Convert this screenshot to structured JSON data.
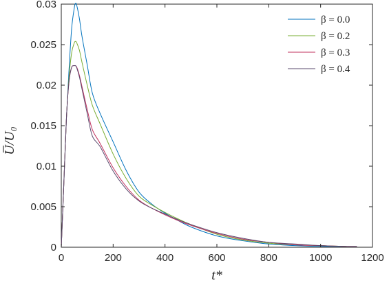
{
  "chart_data": {
    "type": "line",
    "title": "",
    "xlabel": "t*",
    "ylabel": "U̅/U₀",
    "xlim": [
      0,
      1200
    ],
    "ylim": [
      0,
      0.03
    ],
    "xticks": [
      0,
      200,
      400,
      600,
      800,
      1000,
      1200
    ],
    "xtick_labels": [
      "0",
      "200",
      "400",
      "600",
      "800",
      "1000",
      "1200"
    ],
    "yticks": [
      0,
      0.005,
      0.01,
      0.015,
      0.02,
      0.025,
      0.03
    ],
    "ytick_labels": [
      "0",
      "0.005",
      "0.01",
      "0.015",
      "0.02",
      "0.025",
      "0.03"
    ],
    "grid": false,
    "legend_position": "top-right",
    "series": [
      {
        "name": "β = 0.0",
        "color": "#0072BD",
        "x": [
          0,
          10,
          20,
          30,
          40,
          50,
          55,
          60,
          70,
          80,
          100,
          120,
          150,
          200,
          250,
          300,
          350,
          400,
          450,
          500,
          600,
          700,
          800,
          900,
          1000,
          1100
        ],
        "y": [
          0,
          0.008,
          0.016,
          0.022,
          0.027,
          0.0295,
          0.0301,
          0.0298,
          0.0282,
          0.026,
          0.0225,
          0.019,
          0.0165,
          0.013,
          0.0095,
          0.0068,
          0.0053,
          0.0042,
          0.0033,
          0.0025,
          0.0014,
          0.0008,
          0.0004,
          0.0002,
          0.0001,
          0.0001
        ]
      },
      {
        "name": "β = 0.2",
        "color": "#77AC30",
        "x": [
          0,
          10,
          20,
          30,
          40,
          50,
          55,
          60,
          70,
          80,
          100,
          120,
          150,
          200,
          250,
          300,
          350,
          400,
          450,
          500,
          600,
          700,
          800,
          900,
          1000,
          1100
        ],
        "y": [
          0,
          0.008,
          0.016,
          0.021,
          0.024,
          0.0252,
          0.0254,
          0.0252,
          0.0243,
          0.0228,
          0.02,
          0.0175,
          0.0152,
          0.0115,
          0.0085,
          0.0063,
          0.0052,
          0.0043,
          0.0035,
          0.0028,
          0.0016,
          0.0009,
          0.0005,
          0.0003,
          0.0002,
          0.0001
        ]
      },
      {
        "name": "β = 0.3",
        "color": "#C0305E",
        "x": [
          0,
          10,
          20,
          30,
          40,
          50,
          55,
          60,
          70,
          80,
          100,
          120,
          150,
          200,
          250,
          300,
          350,
          400,
          450,
          500,
          600,
          700,
          800,
          900,
          1000,
          1100,
          1140
        ],
        "y": [
          0,
          0.008,
          0.016,
          0.0205,
          0.0222,
          0.0224,
          0.0224,
          0.0222,
          0.0212,
          0.0198,
          0.017,
          0.0145,
          0.0128,
          0.0098,
          0.0075,
          0.0058,
          0.0048,
          0.004,
          0.0033,
          0.0027,
          0.0017,
          0.001,
          0.0006,
          0.0003,
          0.0002,
          0.0001,
          0.0001
        ]
      },
      {
        "name": "β = 0.4",
        "color": "#5A4A6E",
        "x": [
          0,
          10,
          20,
          30,
          40,
          50,
          55,
          60,
          70,
          80,
          100,
          120,
          150,
          200,
          250,
          300,
          350,
          400,
          450,
          500,
          600,
          700,
          800,
          900,
          1000,
          1100,
          1140
        ],
        "y": [
          0,
          0.008,
          0.016,
          0.0205,
          0.0222,
          0.0224,
          0.0224,
          0.0221,
          0.021,
          0.0195,
          0.0165,
          0.0137,
          0.0124,
          0.0094,
          0.0072,
          0.0057,
          0.0048,
          0.0041,
          0.0034,
          0.0028,
          0.0018,
          0.0011,
          0.0006,
          0.0004,
          0.0002,
          0.0001,
          0.0001
        ]
      }
    ]
  }
}
